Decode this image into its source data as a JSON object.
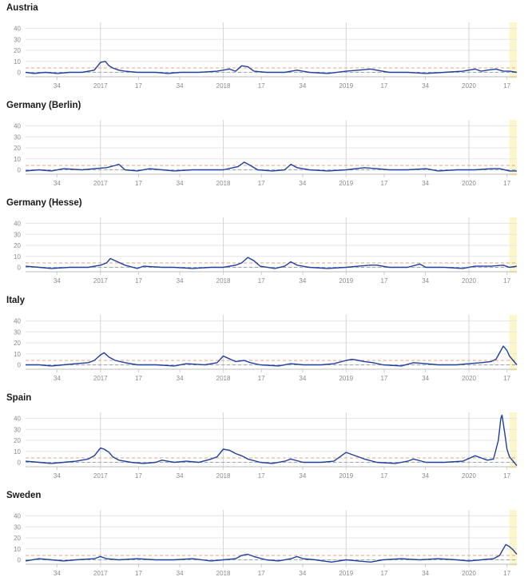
{
  "chart_data": {
    "type": "line",
    "ylim": [
      -4,
      44
    ],
    "yticks": [
      "0",
      "10",
      "20",
      "30",
      "40"
    ],
    "x_range": [
      2016.39,
      2020.39
    ],
    "xticks": [
      {
        "x": 2016.646,
        "label": "34"
      },
      {
        "x": 2017.0,
        "label": "2017"
      },
      {
        "x": 2017.31,
        "label": "17"
      },
      {
        "x": 2017.646,
        "label": "34"
      },
      {
        "x": 2018.0,
        "label": "2018"
      },
      {
        "x": 2018.31,
        "label": "17"
      },
      {
        "x": 2018.646,
        "label": "34"
      },
      {
        "x": 2019.0,
        "label": "2019"
      },
      {
        "x": 2019.31,
        "label": "17"
      },
      {
        "x": 2019.646,
        "label": "34"
      },
      {
        "x": 2020.0,
        "label": "2020"
      },
      {
        "x": 2020.31,
        "label": "17"
      }
    ],
    "threshold_upper": 4,
    "baseline": 0,
    "highlight_from": 2020.33,
    "colors": {
      "line": "#1f3f9e",
      "threshold": "#e8a08a",
      "baseline": "#9aa4b8",
      "highlight": "#fdf6c8",
      "grid": "#e6e6e6",
      "year_line": "#d4d4d4"
    },
    "panels": [
      {
        "title": "Austria",
        "points": [
          [
            2016.39,
            0
          ],
          [
            2016.46,
            -1
          ],
          [
            2016.55,
            0
          ],
          [
            2016.65,
            -1
          ],
          [
            2016.75,
            0
          ],
          [
            2016.85,
            0
          ],
          [
            2016.95,
            2
          ],
          [
            2017.0,
            9
          ],
          [
            2017.04,
            10
          ],
          [
            2017.07,
            6
          ],
          [
            2017.1,
            4
          ],
          [
            2017.15,
            2
          ],
          [
            2017.2,
            1
          ],
          [
            2017.3,
            0
          ],
          [
            2017.45,
            0
          ],
          [
            2017.55,
            -1
          ],
          [
            2017.65,
            0
          ],
          [
            2017.8,
            0
          ],
          [
            2017.95,
            1
          ],
          [
            2018.05,
            3
          ],
          [
            2018.1,
            1
          ],
          [
            2018.15,
            6
          ],
          [
            2018.2,
            5
          ],
          [
            2018.25,
            1
          ],
          [
            2018.35,
            0
          ],
          [
            2018.5,
            0
          ],
          [
            2018.6,
            2
          ],
          [
            2018.7,
            0
          ],
          [
            2018.85,
            -1
          ],
          [
            2019.0,
            1
          ],
          [
            2019.1,
            2
          ],
          [
            2019.2,
            3
          ],
          [
            2019.25,
            2
          ],
          [
            2019.35,
            0
          ],
          [
            2019.5,
            0
          ],
          [
            2019.65,
            -1
          ],
          [
            2019.8,
            0
          ],
          [
            2019.95,
            1
          ],
          [
            2020.05,
            3
          ],
          [
            2020.1,
            1
          ],
          [
            2020.15,
            2
          ],
          [
            2020.22,
            3
          ],
          [
            2020.28,
            1
          ],
          [
            2020.33,
            1
          ],
          [
            2020.39,
            0
          ]
        ]
      },
      {
        "title": "Germany (Berlin)",
        "points": [
          [
            2016.39,
            -1
          ],
          [
            2016.5,
            0
          ],
          [
            2016.6,
            -1
          ],
          [
            2016.7,
            1
          ],
          [
            2016.85,
            0
          ],
          [
            2016.95,
            1
          ],
          [
            2017.05,
            2
          ],
          [
            2017.12,
            4
          ],
          [
            2017.15,
            5
          ],
          [
            2017.2,
            0
          ],
          [
            2017.3,
            -1
          ],
          [
            2017.4,
            1
          ],
          [
            2017.5,
            0
          ],
          [
            2017.6,
            -1
          ],
          [
            2017.75,
            0
          ],
          [
            2017.9,
            0
          ],
          [
            2018.0,
            0
          ],
          [
            2018.08,
            2
          ],
          [
            2018.12,
            3
          ],
          [
            2018.17,
            7
          ],
          [
            2018.22,
            4
          ],
          [
            2018.28,
            0
          ],
          [
            2018.4,
            -1
          ],
          [
            2018.5,
            0
          ],
          [
            2018.55,
            5
          ],
          [
            2018.6,
            2
          ],
          [
            2018.7,
            0
          ],
          [
            2018.85,
            -1
          ],
          [
            2019.0,
            0
          ],
          [
            2019.15,
            2
          ],
          [
            2019.25,
            1
          ],
          [
            2019.35,
            0
          ],
          [
            2019.5,
            0
          ],
          [
            2019.65,
            1
          ],
          [
            2019.75,
            -1
          ],
          [
            2019.9,
            0
          ],
          [
            2020.05,
            0
          ],
          [
            2020.18,
            1
          ],
          [
            2020.25,
            1
          ],
          [
            2020.33,
            -1
          ],
          [
            2020.39,
            -1
          ]
        ]
      },
      {
        "title": "Germany (Hesse)",
        "points": [
          [
            2016.39,
            1
          ],
          [
            2016.5,
            0
          ],
          [
            2016.6,
            -1
          ],
          [
            2016.75,
            0
          ],
          [
            2016.9,
            0
          ],
          [
            2017.0,
            2
          ],
          [
            2017.05,
            4
          ],
          [
            2017.08,
            8
          ],
          [
            2017.12,
            6
          ],
          [
            2017.2,
            2
          ],
          [
            2017.3,
            -1
          ],
          [
            2017.35,
            1
          ],
          [
            2017.5,
            0
          ],
          [
            2017.6,
            0
          ],
          [
            2017.75,
            -1
          ],
          [
            2017.9,
            0
          ],
          [
            2018.0,
            0
          ],
          [
            2018.1,
            2
          ],
          [
            2018.15,
            4
          ],
          [
            2018.2,
            9
          ],
          [
            2018.25,
            6
          ],
          [
            2018.3,
            1
          ],
          [
            2018.42,
            -1
          ],
          [
            2018.5,
            1
          ],
          [
            2018.55,
            5
          ],
          [
            2018.6,
            2
          ],
          [
            2018.7,
            0
          ],
          [
            2018.85,
            -1
          ],
          [
            2019.0,
            0
          ],
          [
            2019.1,
            1
          ],
          [
            2019.2,
            2
          ],
          [
            2019.25,
            2
          ],
          [
            2019.35,
            0
          ],
          [
            2019.5,
            0
          ],
          [
            2019.6,
            3
          ],
          [
            2019.65,
            0
          ],
          [
            2019.8,
            0
          ],
          [
            2019.95,
            -1
          ],
          [
            2020.05,
            1
          ],
          [
            2020.18,
            1
          ],
          [
            2020.28,
            2
          ],
          [
            2020.33,
            0
          ],
          [
            2020.39,
            1
          ]
        ]
      },
      {
        "title": "Italy",
        "points": [
          [
            2016.39,
            0
          ],
          [
            2016.5,
            0
          ],
          [
            2016.6,
            -1
          ],
          [
            2016.7,
            0
          ],
          [
            2016.8,
            1
          ],
          [
            2016.9,
            2
          ],
          [
            2016.95,
            4
          ],
          [
            2017.0,
            9
          ],
          [
            2017.03,
            11
          ],
          [
            2017.07,
            7
          ],
          [
            2017.12,
            4
          ],
          [
            2017.2,
            2
          ],
          [
            2017.3,
            0
          ],
          [
            2017.45,
            0
          ],
          [
            2017.6,
            -1
          ],
          [
            2017.7,
            1
          ],
          [
            2017.85,
            0
          ],
          [
            2017.95,
            2
          ],
          [
            2018.0,
            8
          ],
          [
            2018.04,
            6
          ],
          [
            2018.1,
            3
          ],
          [
            2018.17,
            4
          ],
          [
            2018.22,
            2
          ],
          [
            2018.3,
            0
          ],
          [
            2018.45,
            -1
          ],
          [
            2018.55,
            1
          ],
          [
            2018.65,
            0
          ],
          [
            2018.8,
            0
          ],
          [
            2018.9,
            1
          ],
          [
            2019.0,
            4
          ],
          [
            2019.05,
            5
          ],
          [
            2019.1,
            4
          ],
          [
            2019.15,
            3
          ],
          [
            2019.22,
            2
          ],
          [
            2019.3,
            0
          ],
          [
            2019.45,
            -1
          ],
          [
            2019.55,
            2
          ],
          [
            2019.65,
            1
          ],
          [
            2019.75,
            0
          ],
          [
            2019.9,
            0
          ],
          [
            2020.0,
            1
          ],
          [
            2020.1,
            2
          ],
          [
            2020.18,
            3
          ],
          [
            2020.22,
            5
          ],
          [
            2020.26,
            13
          ],
          [
            2020.28,
            17
          ],
          [
            2020.31,
            13
          ],
          [
            2020.33,
            8
          ],
          [
            2020.36,
            4
          ],
          [
            2020.39,
            0
          ]
        ]
      },
      {
        "title": "Spain",
        "points": [
          [
            2016.39,
            1
          ],
          [
            2016.5,
            0
          ],
          [
            2016.6,
            -1
          ],
          [
            2016.7,
            0
          ],
          [
            2016.8,
            1
          ],
          [
            2016.9,
            3
          ],
          [
            2016.95,
            6
          ],
          [
            2017.0,
            13
          ],
          [
            2017.03,
            12
          ],
          [
            2017.07,
            9
          ],
          [
            2017.1,
            5
          ],
          [
            2017.15,
            2
          ],
          [
            2017.25,
            0
          ],
          [
            2017.35,
            -1
          ],
          [
            2017.45,
            0
          ],
          [
            2017.5,
            2
          ],
          [
            2017.6,
            0
          ],
          [
            2017.7,
            1
          ],
          [
            2017.8,
            0
          ],
          [
            2017.9,
            3
          ],
          [
            2017.95,
            5
          ],
          [
            2018.0,
            12
          ],
          [
            2018.05,
            11
          ],
          [
            2018.1,
            8
          ],
          [
            2018.15,
            6
          ],
          [
            2018.2,
            3
          ],
          [
            2018.3,
            0
          ],
          [
            2018.4,
            -1
          ],
          [
            2018.5,
            1
          ],
          [
            2018.55,
            3
          ],
          [
            2018.65,
            0
          ],
          [
            2018.8,
            0
          ],
          [
            2018.9,
            1
          ],
          [
            2019.0,
            9
          ],
          [
            2019.05,
            7
          ],
          [
            2019.1,
            5
          ],
          [
            2019.15,
            3
          ],
          [
            2019.25,
            0
          ],
          [
            2019.4,
            -1
          ],
          [
            2019.5,
            1
          ],
          [
            2019.55,
            3
          ],
          [
            2019.65,
            0
          ],
          [
            2019.8,
            0
          ],
          [
            2019.95,
            1
          ],
          [
            2020.05,
            6
          ],
          [
            2020.1,
            4
          ],
          [
            2020.15,
            2
          ],
          [
            2020.2,
            3
          ],
          [
            2020.24,
            20
          ],
          [
            2020.26,
            40
          ],
          [
            2020.27,
            43
          ],
          [
            2020.29,
            28
          ],
          [
            2020.31,
            12
          ],
          [
            2020.33,
            5
          ],
          [
            2020.36,
            1
          ],
          [
            2020.39,
            -3
          ]
        ]
      },
      {
        "title": "Sweden",
        "points": [
          [
            2016.39,
            -1
          ],
          [
            2016.5,
            1
          ],
          [
            2016.6,
            0
          ],
          [
            2016.7,
            -1
          ],
          [
            2016.8,
            0
          ],
          [
            2016.95,
            1
          ],
          [
            2017.0,
            3
          ],
          [
            2017.05,
            1
          ],
          [
            2017.15,
            0
          ],
          [
            2017.3,
            1
          ],
          [
            2017.45,
            0
          ],
          [
            2017.6,
            0
          ],
          [
            2017.75,
            1
          ],
          [
            2017.9,
            -1
          ],
          [
            2018.0,
            0
          ],
          [
            2018.1,
            1
          ],
          [
            2018.15,
            4
          ],
          [
            2018.2,
            5
          ],
          [
            2018.25,
            3
          ],
          [
            2018.35,
            0
          ],
          [
            2018.45,
            -1
          ],
          [
            2018.55,
            1
          ],
          [
            2018.6,
            3
          ],
          [
            2018.65,
            1
          ],
          [
            2018.75,
            0
          ],
          [
            2018.88,
            -2
          ],
          [
            2019.0,
            0
          ],
          [
            2019.1,
            -1
          ],
          [
            2019.2,
            -2
          ],
          [
            2019.3,
            0
          ],
          [
            2019.45,
            1
          ],
          [
            2019.6,
            0
          ],
          [
            2019.75,
            1
          ],
          [
            2019.9,
            0
          ],
          [
            2020.0,
            -1
          ],
          [
            2020.1,
            0
          ],
          [
            2020.2,
            1
          ],
          [
            2020.25,
            4
          ],
          [
            2020.28,
            10
          ],
          [
            2020.3,
            14
          ],
          [
            2020.33,
            12
          ],
          [
            2020.36,
            9
          ],
          [
            2020.39,
            5
          ]
        ]
      }
    ]
  }
}
